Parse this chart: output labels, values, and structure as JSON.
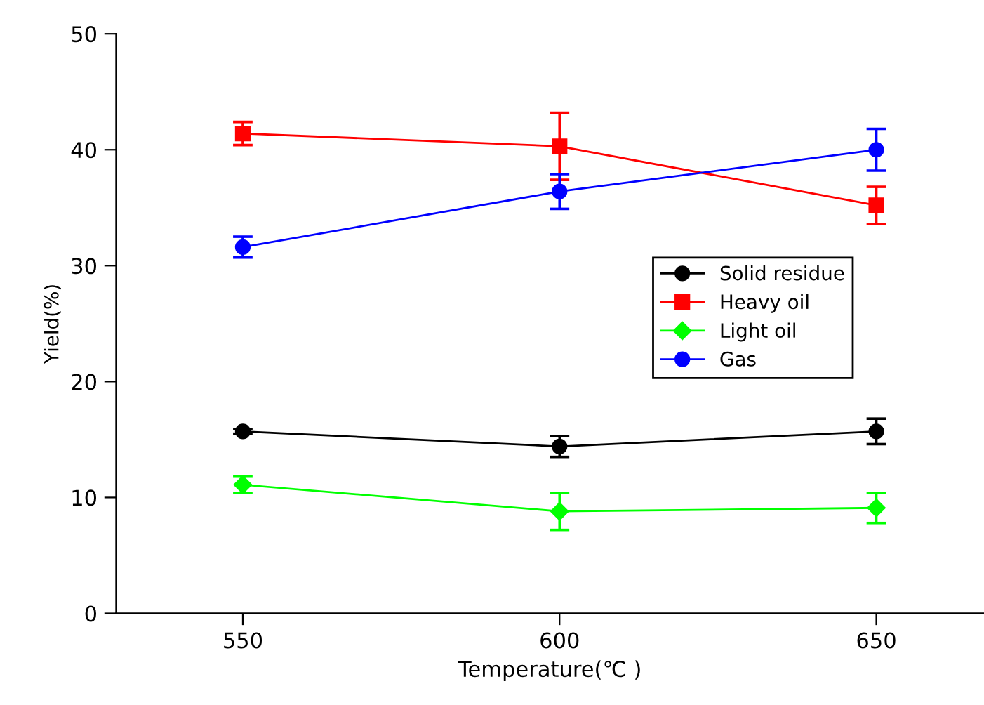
{
  "chart_data": {
    "type": "line",
    "xlabel": "Temperature(℃ )",
    "ylabel": "Yield(%)",
    "x": [
      550,
      600,
      650
    ],
    "xlim": [
      530,
      667
    ],
    "xticks": [
      550,
      600,
      650
    ],
    "ylim": [
      0,
      50
    ],
    "yticks": [
      0,
      10,
      20,
      30,
      40,
      50
    ],
    "grid": false,
    "legend": "center right",
    "line_style": "solid",
    "series": [
      {
        "name": "Solid residue",
        "color": "#000000",
        "marker": "circle",
        "values": [
          15.7,
          14.4,
          15.7
        ],
        "errors": [
          0.2,
          0.9,
          1.1
        ]
      },
      {
        "name": "Heavy oil",
        "color": "#ff0000",
        "marker": "square",
        "values": [
          41.4,
          40.3,
          35.2
        ],
        "errors": [
          1.0,
          2.9,
          1.6
        ]
      },
      {
        "name": "Light oil",
        "color": "#00ff00",
        "marker": "diamond",
        "values": [
          11.1,
          8.8,
          9.1
        ],
        "errors": [
          0.7,
          1.6,
          1.3
        ]
      },
      {
        "name": "Gas",
        "color": "#0000ff",
        "marker": "circle",
        "values": [
          31.6,
          36.4,
          40.0
        ],
        "errors": [
          0.9,
          1.5,
          1.8
        ]
      }
    ]
  }
}
